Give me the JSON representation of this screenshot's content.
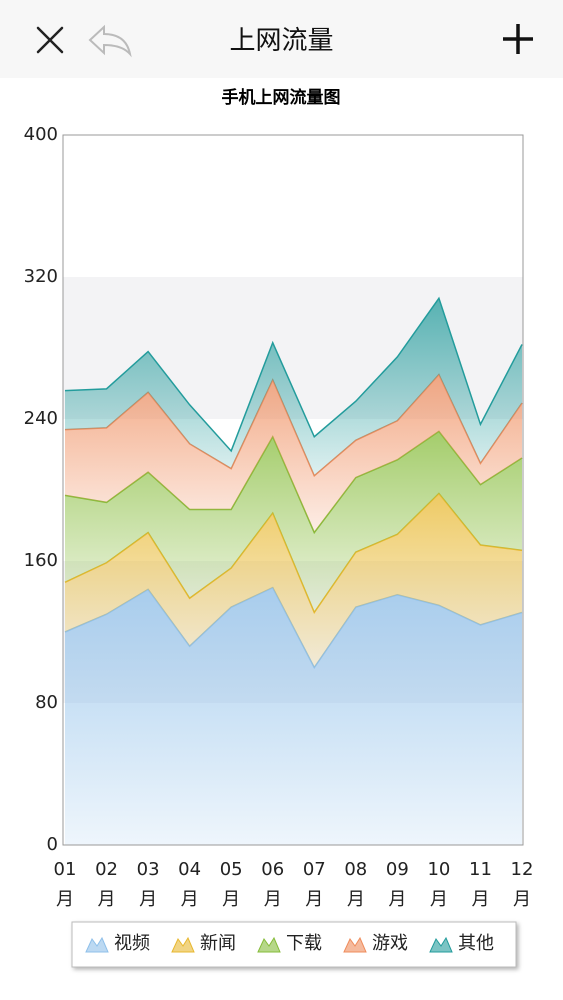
{
  "app_bar": {
    "title": "上网流量"
  },
  "chart_data": {
    "type": "stacked_area",
    "title": "手机上网流量图",
    "categories": [
      "01月",
      "02月",
      "03月",
      "04月",
      "05月",
      "06月",
      "07月",
      "08月",
      "09月",
      "10月",
      "11月",
      "12月"
    ],
    "series": [
      {
        "name": "视频",
        "color": "#8fc0ea",
        "values": [
          120,
          130,
          144,
          112,
          134,
          145,
          100,
          134,
          141,
          135,
          124,
          131
        ]
      },
      {
        "name": "新闻",
        "color": "#e8b830",
        "values": [
          28,
          29,
          32,
          27,
          22,
          42,
          31,
          31,
          34,
          63,
          45,
          35
        ]
      },
      {
        "name": "下载",
        "color": "#86bc3a",
        "values": [
          49,
          34,
          34,
          50,
          33,
          43,
          45,
          42,
          42,
          35,
          34,
          52
        ]
      },
      {
        "name": "游戏",
        "color": "#ef8c5c",
        "values": [
          37,
          42,
          45,
          37,
          23,
          32,
          32,
          21,
          22,
          32,
          12,
          31
        ]
      },
      {
        "name": "其他",
        "color": "#239c9c",
        "values": [
          22,
          22,
          23,
          22,
          10,
          21,
          22,
          22,
          36,
          43,
          22,
          33
        ]
      }
    ],
    "ylim": [
      0,
      400
    ],
    "yticks": [
      0,
      80,
      160,
      240,
      320,
      400
    ]
  }
}
